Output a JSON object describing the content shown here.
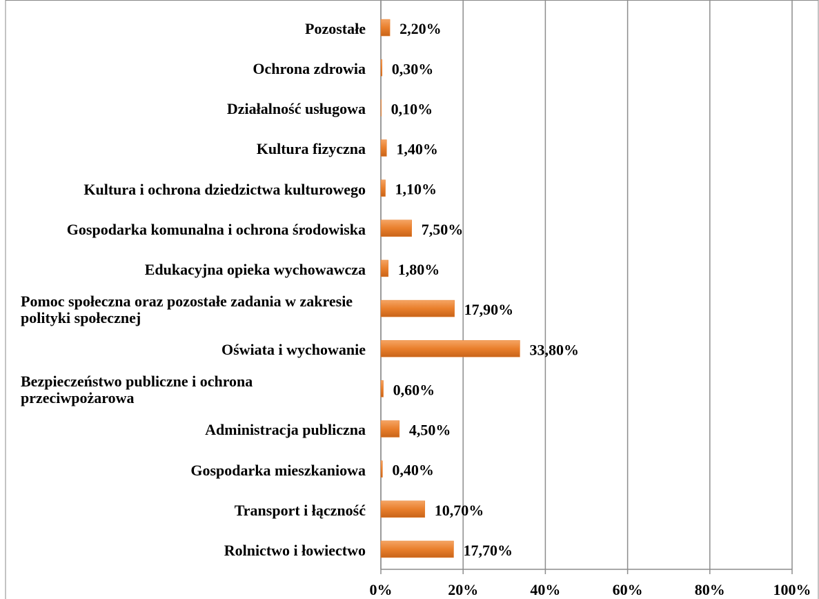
{
  "chart_data": {
    "type": "bar",
    "orientation": "horizontal",
    "categories": [
      "Pozostałe",
      "Ochrona zdrowia",
      "Działalność usługowa",
      "Kultura fizyczna",
      "Kultura i ochrona dziedzictwa kulturowego",
      "Gospodarka komunalna i ochrona środowiska",
      "Edukacyjna opieka wychowawcza",
      "Pomoc społeczna oraz pozostałe zadania w zakresie polityki społecznej",
      "Oświata i wychowanie",
      "Bezpieczeństwo publiczne i ochrona przeciwpożarowa",
      "Administracja publiczna",
      "Gospodarka mieszkaniowa",
      "Transport i łączność",
      "Rolnictwo i łowiectwo"
    ],
    "values": [
      2.2,
      0.3,
      0.1,
      1.4,
      1.1,
      7.5,
      1.8,
      17.9,
      33.8,
      0.6,
      4.5,
      0.4,
      10.7,
      17.7
    ],
    "value_labels": [
      "2,20%",
      "0,30%",
      "0,10%",
      "1,40%",
      "1,10%",
      "7,50%",
      "1,80%",
      "17,90%",
      "33,80%",
      "0,60%",
      "4,50%",
      "0,40%",
      "10,70%",
      "17,70%"
    ],
    "color": "#e97f2c",
    "xlim": [
      0,
      100
    ],
    "xticks": [
      {
        "value": 0,
        "label": "0%"
      },
      {
        "value": 20,
        "label": "20%"
      },
      {
        "value": 40,
        "label": "40%"
      },
      {
        "value": 60,
        "label": "60%"
      },
      {
        "value": 80,
        "label": "80%"
      },
      {
        "value": 100,
        "label": "100%"
      }
    ],
    "grid": true
  }
}
